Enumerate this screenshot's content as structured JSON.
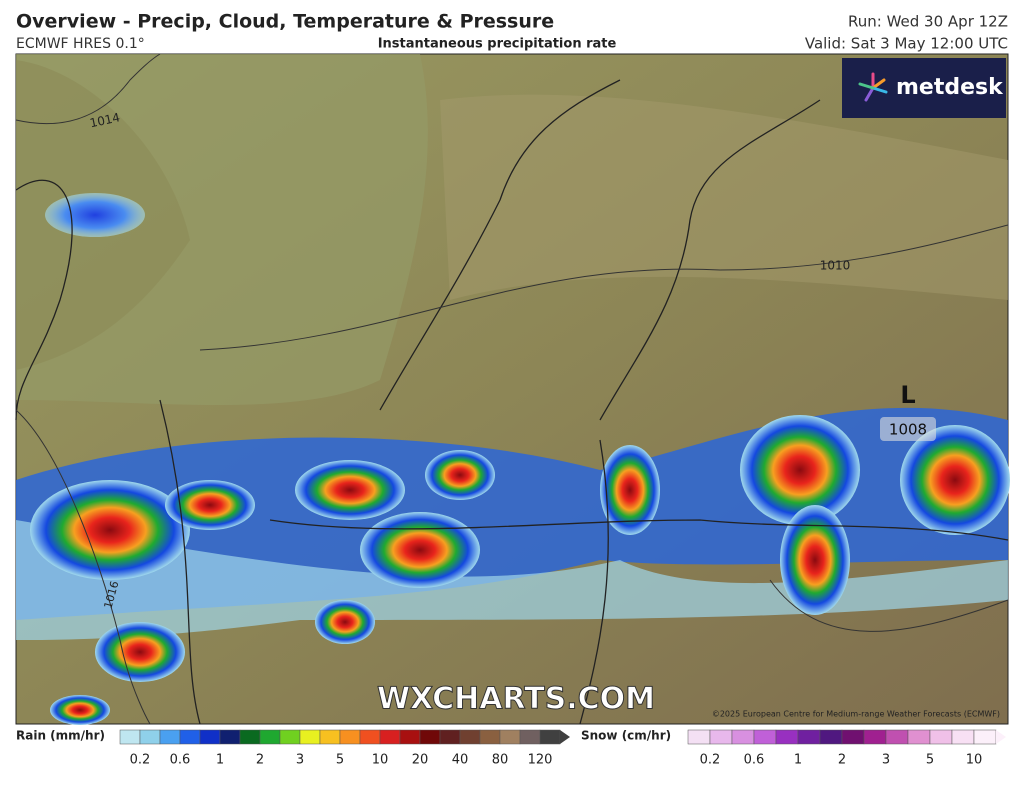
{
  "header": {
    "title": "Overview - Precip, Cloud, Temperature & Pressure",
    "model": "ECMWF HRES 0.1°",
    "product": "Instantaneous precipitation rate",
    "run": "Run: Wed 30 Apr 12Z",
    "valid": "Valid: Sat 3 May 12:00 UTC"
  },
  "map": {
    "logo": "metdesk",
    "watermark": "WXCHARTS.COM",
    "copyright": "©2025 European Centre for Medium-range Weather Forecasts (ECMWF)",
    "isobars": [
      {
        "label": "1014"
      },
      {
        "label": "1010"
      },
      {
        "label": "1016"
      }
    ],
    "low": {
      "symbol": "L",
      "pressure": "1008"
    }
  },
  "legend": {
    "rain": {
      "label": "Rain (mm/hr)",
      "ticks": [
        "0.2",
        "0.6",
        "1",
        "2",
        "3",
        "5",
        "10",
        "20",
        "40",
        "80",
        "120"
      ]
    },
    "snow": {
      "label": "Snow (cm/hr)",
      "ticks": [
        "0.2",
        "0.6",
        "1",
        "2",
        "3",
        "5",
        "10"
      ]
    }
  }
}
